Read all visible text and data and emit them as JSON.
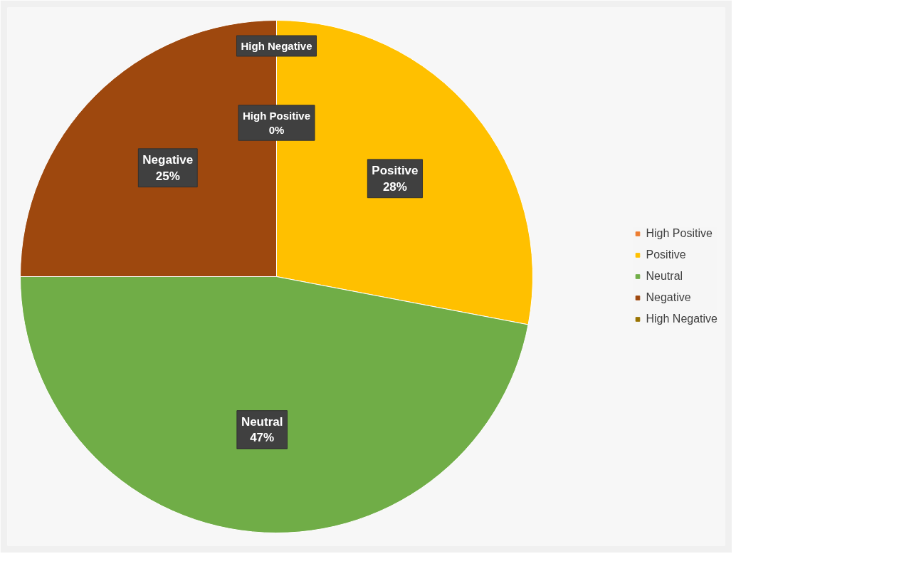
{
  "chart_data": {
    "type": "pie",
    "categories": [
      "High Positive",
      "Positive",
      "Neutral",
      "Negative",
      "High Negative"
    ],
    "values": [
      0,
      28,
      47,
      25,
      0
    ],
    "colors": [
      "#ed7d31",
      "#ffc000",
      "#70ad47",
      "#9e480e",
      "#997300"
    ],
    "value_labels": [
      "0%",
      "28%",
      "47%",
      "25%",
      null
    ],
    "legend": "right"
  }
}
